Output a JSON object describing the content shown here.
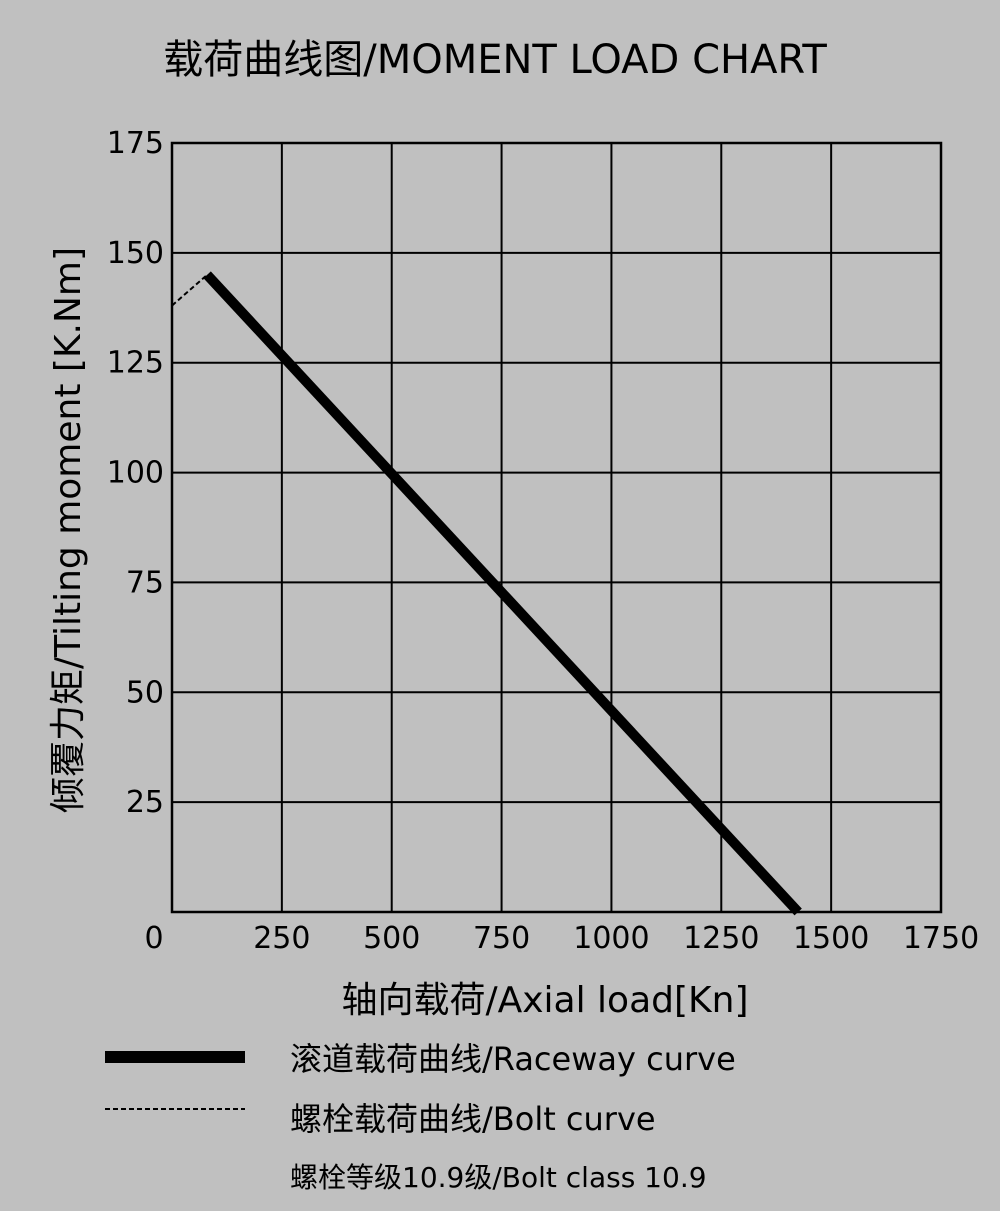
{
  "chart_data": {
    "type": "line",
    "title": "载荷曲线图/MOMENT LOAD CHART",
    "xlabel": "轴向载荷/Axial load[Kn]",
    "ylabel": "倾覆力矩/Tilting moment [K.Nm]",
    "xlim": [
      0,
      1750
    ],
    "ylim": [
      0,
      175
    ],
    "xticks": [
      0,
      250,
      500,
      750,
      1000,
      1250,
      1500,
      1750
    ],
    "yticks": [
      25,
      50,
      75,
      100,
      125,
      150,
      175
    ],
    "grid": true,
    "legend_position": "bottom",
    "series": [
      {
        "name": "滚道载荷曲线/Raceway curve",
        "style": "solid-thick",
        "color": "#000000",
        "x": [
          80,
          1425
        ],
        "y": [
          145,
          0
        ]
      },
      {
        "name": "螺栓载荷曲线/Bolt curve",
        "style": "dashed",
        "color": "#000000",
        "x": [
          0,
          80
        ],
        "y": [
          138,
          145
        ]
      }
    ],
    "annotations": [
      "螺栓等级10.9级/Bolt class 10.9"
    ]
  }
}
